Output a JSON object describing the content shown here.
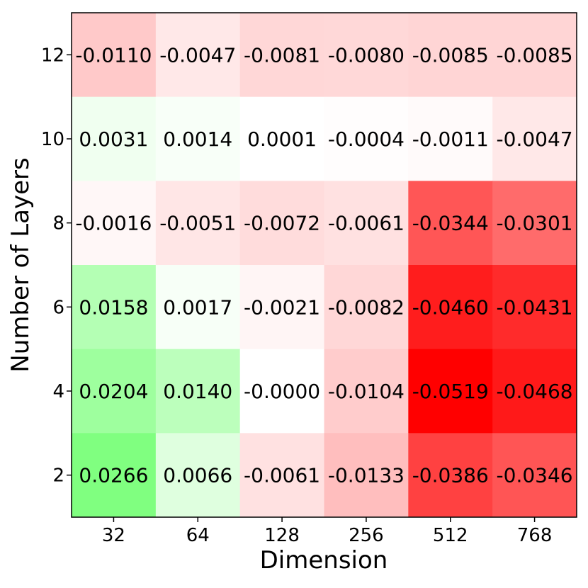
{
  "chart_data": {
    "type": "heatmap",
    "title": "",
    "xlabel": "Dimension",
    "ylabel": "Number of Layers",
    "x_categories": [
      "32",
      "64",
      "128",
      "256",
      "512",
      "768"
    ],
    "y_categories": [
      "12",
      "10",
      "8",
      "6",
      "4",
      "2"
    ],
    "values": [
      [
        -0.011,
        -0.0047,
        -0.0081,
        -0.008,
        -0.0085,
        -0.0085
      ],
      [
        0.0031,
        0.0014,
        0.0001,
        -0.0004,
        -0.0011,
        -0.0047
      ],
      [
        -0.0016,
        -0.0051,
        -0.0072,
        -0.0061,
        -0.0344,
        -0.0301
      ],
      [
        0.0158,
        0.0017,
        -0.0021,
        -0.0082,
        -0.046,
        -0.0431
      ],
      [
        0.0204,
        0.014,
        -0.0,
        -0.0104,
        -0.0519,
        -0.0468
      ],
      [
        0.0266,
        0.0066,
        -0.0061,
        -0.0133,
        -0.0386,
        -0.0346
      ]
    ],
    "value_labels": [
      [
        "-0.0110",
        "-0.0047",
        "-0.0081",
        "-0.0080",
        "-0.0085",
        "-0.0085"
      ],
      [
        "0.0031",
        "0.0014",
        "0.0001",
        "-0.0004",
        "-0.0011",
        "-0.0047"
      ],
      [
        "-0.0016",
        "-0.0051",
        "-0.0072",
        "-0.0061",
        "-0.0344",
        "-0.0301"
      ],
      [
        "0.0158",
        "0.0017",
        "-0.0021",
        "-0.0082",
        "-0.0460",
        "-0.0431"
      ],
      [
        "0.0204",
        "0.0140",
        "-0.0000",
        "-0.0104",
        "-0.0519",
        "-0.0468"
      ],
      [
        "0.0266",
        "0.0066",
        "-0.0061",
        "-0.0133",
        "-0.0386",
        "-0.0346"
      ]
    ],
    "color_scale": {
      "negative_max": -0.0519,
      "positive_max": 0.0266,
      "negative_color": "#ff0000",
      "positive_color": "#80ff80",
      "neutral_color": "#ffffff"
    },
    "grid": false,
    "legend": "none"
  }
}
